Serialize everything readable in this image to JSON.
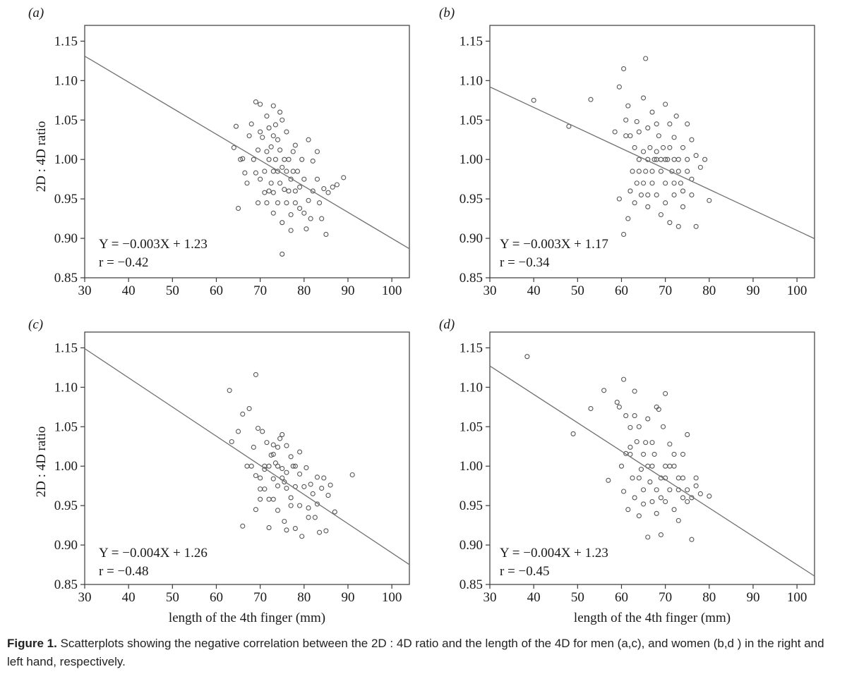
{
  "chart_data": [
    {
      "type": "scatter",
      "panel_label": "(a)",
      "group": "men, right hand",
      "xlabel": "",
      "ylabel": "2D : 4D ratio",
      "xlim": [
        30,
        104
      ],
      "ylim": [
        0.85,
        1.17
      ],
      "xticks": [
        "30",
        "40",
        "50",
        "60",
        "70",
        "80",
        "90",
        "100"
      ],
      "yticks": [
        "0.85",
        "0.90",
        "0.95",
        "1.00",
        "1.05",
        "1.10",
        "1.15"
      ],
      "fit_line": {
        "slope": -0.0033,
        "intercept": 1.23
      },
      "equation": "Y = −0.003X + 1.23",
      "r_text": "r = −0.42",
      "points": [
        [
          64.5,
          1.042
        ],
        [
          64,
          1.015
        ],
        [
          65,
          0.938
        ],
        [
          65.5,
          1.0
        ],
        [
          66,
          1.001
        ],
        [
          66.5,
          0.983
        ],
        [
          67,
          0.97
        ],
        [
          67.5,
          1.03
        ],
        [
          68,
          1.045
        ],
        [
          68.5,
          1.0
        ],
        [
          69,
          1.073
        ],
        [
          69,
          0.983
        ],
        [
          69.5,
          0.945
        ],
        [
          69.5,
          1.012
        ],
        [
          70,
          1.07
        ],
        [
          70,
          1.035
        ],
        [
          70,
          0.975
        ],
        [
          70.5,
          1.028
        ],
        [
          71,
          0.985
        ],
        [
          71,
          0.958
        ],
        [
          71.5,
          1.01
        ],
        [
          71.5,
          1.055
        ],
        [
          71.5,
          0.945
        ],
        [
          72,
          1.04
        ],
        [
          72,
          1.0
        ],
        [
          72,
          0.96
        ],
        [
          72.5,
          1.016
        ],
        [
          72.5,
          0.97
        ],
        [
          73,
          1.068
        ],
        [
          73,
          1.03
        ],
        [
          73,
          0.985
        ],
        [
          73,
          0.958
        ],
        [
          73,
          0.932
        ],
        [
          73.5,
          1.044
        ],
        [
          73.5,
          1.0
        ],
        [
          74,
          0.985
        ],
        [
          74,
          0.945
        ],
        [
          74,
          1.025
        ],
        [
          74.5,
          1.06
        ],
        [
          74.5,
          1.012
        ],
        [
          74.5,
          0.97
        ],
        [
          75,
          1.05
        ],
        [
          75,
          0.92
        ],
        [
          75,
          0.88
        ],
        [
          75,
          0.99
        ],
        [
          75.5,
          1.0
        ],
        [
          75.5,
          0.962
        ],
        [
          76,
          1.035
        ],
        [
          76,
          0.985
        ],
        [
          76,
          0.945
        ],
        [
          76.5,
          1.0
        ],
        [
          76.5,
          0.96
        ],
        [
          77,
          0.975
        ],
        [
          77,
          0.93
        ],
        [
          77,
          0.91
        ],
        [
          77.5,
          1.01
        ],
        [
          77.5,
          0.985
        ],
        [
          78,
          0.96
        ],
        [
          78,
          0.945
        ],
        [
          78,
          1.018
        ],
        [
          78.5,
          0.985
        ],
        [
          79,
          0.965
        ],
        [
          79,
          0.938
        ],
        [
          79.5,
          1.0
        ],
        [
          80,
          0.975
        ],
        [
          80,
          0.932
        ],
        [
          80.5,
          0.912
        ],
        [
          81,
          0.948
        ],
        [
          81,
          1.025
        ],
        [
          81.5,
          0.925
        ],
        [
          82,
          0.96
        ],
        [
          82,
          0.998
        ],
        [
          83,
          0.975
        ],
        [
          83,
          1.01
        ],
        [
          83.5,
          0.945
        ],
        [
          84,
          0.925
        ],
        [
          84.5,
          0.963
        ],
        [
          85,
          0.905
        ],
        [
          85.5,
          0.958
        ],
        [
          86.5,
          0.965
        ],
        [
          87.5,
          0.968
        ],
        [
          89,
          0.977
        ]
      ]
    },
    {
      "type": "scatter",
      "panel_label": "(b)",
      "group": "women, right hand",
      "xlabel": "",
      "ylabel": "",
      "xlim": [
        30,
        104
      ],
      "ylim": [
        0.85,
        1.17
      ],
      "xticks": [
        "30",
        "40",
        "50",
        "60",
        "70",
        "80",
        "90",
        "100"
      ],
      "yticks": [
        "0.85",
        "0.90",
        "0.95",
        "1.00",
        "1.05",
        "1.10",
        "1.15"
      ],
      "fit_line": {
        "slope": -0.0026,
        "intercept": 1.17
      },
      "equation": "Y = −0.003X + 1.17",
      "r_text": "r = −0.34",
      "points": [
        [
          40,
          1.075
        ],
        [
          48,
          1.042
        ],
        [
          53,
          1.076
        ],
        [
          58.5,
          1.035
        ],
        [
          59.5,
          1.092
        ],
        [
          60.5,
          1.115
        ],
        [
          59.5,
          0.95
        ],
        [
          60.5,
          0.905
        ],
        [
          61,
          1.05
        ],
        [
          61.5,
          0.925
        ],
        [
          61.5,
          1.068
        ],
        [
          62,
          1.03
        ],
        [
          62.5,
          0.985
        ],
        [
          63,
          1.015
        ],
        [
          63.5,
          0.97
        ],
        [
          63.5,
          1.048
        ],
        [
          64,
          1.0
        ],
        [
          64.5,
          0.955
        ],
        [
          65,
          1.078
        ],
        [
          65,
          1.01
        ],
        [
          65.5,
          1.128
        ],
        [
          65.5,
          0.985
        ],
        [
          66,
          1.04
        ],
        [
          66,
          0.94
        ],
        [
          66.5,
          1.015
        ],
        [
          67,
          1.06
        ],
        [
          67,
          0.97
        ],
        [
          67.5,
          1.0
        ],
        [
          68,
          1.045
        ],
        [
          68,
          0.955
        ],
        [
          68.5,
          1.03
        ],
        [
          69,
          0.985
        ],
        [
          69,
          0.93
        ],
        [
          69.5,
          1.015
        ],
        [
          70,
          1.07
        ],
        [
          70,
          0.97
        ],
        [
          70.5,
          1.0
        ],
        [
          71,
          1.045
        ],
        [
          71,
          0.92
        ],
        [
          71.5,
          0.985
        ],
        [
          72,
          1.028
        ],
        [
          72,
          0.955
        ],
        [
          72.5,
          1.055
        ],
        [
          73,
          1.0
        ],
        [
          73,
          0.915
        ],
        [
          73.5,
          0.97
        ],
        [
          74,
          1.015
        ],
        [
          74,
          0.94
        ],
        [
          75,
          1.045
        ],
        [
          75,
          0.985
        ],
        [
          76,
          0.955
        ],
        [
          76,
          1.025
        ],
        [
          77,
          1.005
        ],
        [
          77,
          0.915
        ],
        [
          78,
          0.99
        ],
        [
          79,
          1.0
        ],
        [
          80,
          0.948
        ],
        [
          61,
          1.03
        ],
        [
          62,
          0.96
        ],
        [
          63,
          0.945
        ],
        [
          64,
          1.035
        ],
        [
          66,
          0.955
        ],
        [
          68,
          1.01
        ],
        [
          70,
          0.945
        ],
        [
          72,
          0.97
        ],
        [
          74,
          0.96
        ],
        [
          76,
          0.975
        ],
        [
          65,
          0.97
        ],
        [
          67,
          0.985
        ],
        [
          69,
          1.0
        ],
        [
          71,
          1.015
        ],
        [
          73,
          0.985
        ],
        [
          75,
          1.0
        ],
        [
          70,
          1.0
        ],
        [
          72,
          1.0
        ],
        [
          68,
          1.0
        ],
        [
          66,
          1.0
        ],
        [
          64,
          0.985
        ]
      ]
    },
    {
      "type": "scatter",
      "panel_label": "(c)",
      "group": "men, left hand",
      "xlabel": "length of the 4th finger (mm)",
      "ylabel": "2D : 4D ratio",
      "xlim": [
        30,
        104
      ],
      "ylim": [
        0.85,
        1.17
      ],
      "xticks": [
        "30",
        "40",
        "50",
        "60",
        "70",
        "80",
        "90",
        "100"
      ],
      "yticks": [
        "0.85",
        "0.90",
        "0.95",
        "1.00",
        "1.05",
        "1.10",
        "1.15"
      ],
      "fit_line": {
        "slope": -0.0037,
        "intercept": 1.26
      },
      "equation": "Y = −0.004X + 1.26",
      "r_text": "r = −0.48",
      "points": [
        [
          63,
          1.096
        ],
        [
          63.5,
          1.031
        ],
        [
          65,
          1.044
        ],
        [
          66,
          1.066
        ],
        [
          66,
          0.924
        ],
        [
          67,
          1.0
        ],
        [
          67.5,
          1.073
        ],
        [
          68,
          1.0
        ],
        [
          68.5,
          1.024
        ],
        [
          69,
          1.116
        ],
        [
          69,
          0.945
        ],
        [
          69,
          0.988
        ],
        [
          69.5,
          1.048
        ],
        [
          70,
          0.971
        ],
        [
          70,
          0.958
        ],
        [
          70.5,
          1.044
        ],
        [
          71,
          1.0
        ],
        [
          71,
          0.996
        ],
        [
          71.5,
          1.03
        ],
        [
          72,
          0.958
        ],
        [
          72,
          0.922
        ],
        [
          72.5,
          1.014
        ],
        [
          73,
          1.027
        ],
        [
          73,
          0.984
        ],
        [
          73,
          0.958
        ],
        [
          73.5,
          1.004
        ],
        [
          74,
          1.0
        ],
        [
          74,
          0.944
        ],
        [
          74,
          1.024
        ],
        [
          74.5,
          1.035
        ],
        [
          75,
          1.04
        ],
        [
          75,
          0.985
        ],
        [
          75.5,
          0.93
        ],
        [
          75.5,
          0.98
        ],
        [
          76,
          1.026
        ],
        [
          76,
          0.919
        ],
        [
          76,
          0.972
        ],
        [
          77,
          1.012
        ],
        [
          77,
          0.95
        ],
        [
          77.5,
          1.0
        ],
        [
          78,
          0.921
        ],
        [
          78,
          0.974
        ],
        [
          79,
          1.018
        ],
        [
          79,
          0.95
        ],
        [
          79.5,
          0.911
        ],
        [
          80,
          0.974
        ],
        [
          80.5,
          0.998
        ],
        [
          81,
          0.947
        ],
        [
          81,
          0.935
        ],
        [
          81.5,
          0.977
        ],
        [
          82,
          0.965
        ],
        [
          82.5,
          0.935
        ],
        [
          83,
          0.986
        ],
        [
          83,
          0.952
        ],
        [
          83.5,
          0.916
        ],
        [
          84,
          0.972
        ],
        [
          84.5,
          0.985
        ],
        [
          85,
          0.918
        ],
        [
          85.5,
          0.963
        ],
        [
          86,
          0.976
        ],
        [
          87,
          0.942
        ],
        [
          91,
          0.989
        ],
        [
          71,
          0.971
        ],
        [
          72,
          1.0
        ],
        [
          73,
          1.015
        ],
        [
          74,
          0.975
        ],
        [
          76,
          0.992
        ],
        [
          78,
          1.0
        ],
        [
          70,
          0.985
        ],
        [
          75,
          0.997
        ],
        [
          77,
          0.96
        ],
        [
          79,
          0.99
        ]
      ]
    },
    {
      "type": "scatter",
      "panel_label": "(d)",
      "group": "women, left hand",
      "xlabel": "length of the 4th finger (mm)",
      "ylabel": "",
      "xlim": [
        30,
        104
      ],
      "ylim": [
        0.85,
        1.17
      ],
      "xticks": [
        "30",
        "40",
        "50",
        "60",
        "70",
        "80",
        "90",
        "100"
      ],
      "yticks": [
        "0.85",
        "0.90",
        "0.95",
        "1.00",
        "1.05",
        "1.10",
        "1.15"
      ],
      "fit_line": {
        "slope": -0.0036,
        "intercept": 1.235
      },
      "equation": "Y = −0.004X + 1.23",
      "r_text": "r = −0.45",
      "points": [
        [
          38.5,
          1.139
        ],
        [
          49,
          1.041
        ],
        [
          53,
          1.073
        ],
        [
          56,
          1.096
        ],
        [
          57,
          0.982
        ],
        [
          59,
          1.081
        ],
        [
          59.5,
          1.075
        ],
        [
          60,
          1.0
        ],
        [
          60.5,
          1.11
        ],
        [
          60.5,
          0.968
        ],
        [
          61,
          1.064
        ],
        [
          61,
          1.016
        ],
        [
          61.5,
          0.945
        ],
        [
          62,
          1.049
        ],
        [
          62,
          1.024
        ],
        [
          62.5,
          0.985
        ],
        [
          63,
          1.095
        ],
        [
          63,
          1.064
        ],
        [
          63,
          0.96
        ],
        [
          63.5,
          1.031
        ],
        [
          64,
          1.05
        ],
        [
          64,
          0.937
        ],
        [
          64.5,
          0.996
        ],
        [
          65,
          1.015
        ],
        [
          65,
          0.952
        ],
        [
          65.5,
          1.03
        ],
        [
          66,
          1.06
        ],
        [
          66,
          0.91
        ],
        [
          66.5,
          0.98
        ],
        [
          67,
          1.0
        ],
        [
          67,
          0.955
        ],
        [
          67.5,
          1.015
        ],
        [
          68,
          1.075
        ],
        [
          68,
          0.94
        ],
        [
          68.5,
          1.072
        ],
        [
          69,
          0.985
        ],
        [
          69,
          0.913
        ],
        [
          69.5,
          1.05
        ],
        [
          70,
          1.092
        ],
        [
          70,
          1.0
        ],
        [
          70,
          0.955
        ],
        [
          71,
          1.028
        ],
        [
          71,
          0.97
        ],
        [
          72,
          0.945
        ],
        [
          72,
          1.015
        ],
        [
          73,
          0.985
        ],
        [
          73,
          0.931
        ],
        [
          74,
          0.96
        ],
        [
          74,
          1.015
        ],
        [
          75,
          1.04
        ],
        [
          75,
          0.97
        ],
        [
          76,
          0.96
        ],
        [
          76,
          0.907
        ],
        [
          77,
          0.985
        ],
        [
          77,
          0.975
        ],
        [
          78,
          0.965
        ],
        [
          80,
          0.962
        ],
        [
          64,
          0.985
        ],
        [
          66,
          1.0
        ],
        [
          68,
          0.97
        ],
        [
          70,
          0.985
        ],
        [
          72,
          1.0
        ],
        [
          74,
          0.985
        ],
        [
          62,
          1.015
        ],
        [
          65,
          0.97
        ],
        [
          67,
          1.03
        ],
        [
          69,
          0.96
        ],
        [
          71,
          1.0
        ],
        [
          73,
          0.97
        ],
        [
          75,
          0.955
        ]
      ]
    }
  ],
  "caption": {
    "label": "Figure 1.",
    "text": " Scatterplots showing the negative correlation between the 2D : 4D ratio and the length of the 4D for men (a,c), and women (b,d ) in the right and left hand, respectively."
  }
}
